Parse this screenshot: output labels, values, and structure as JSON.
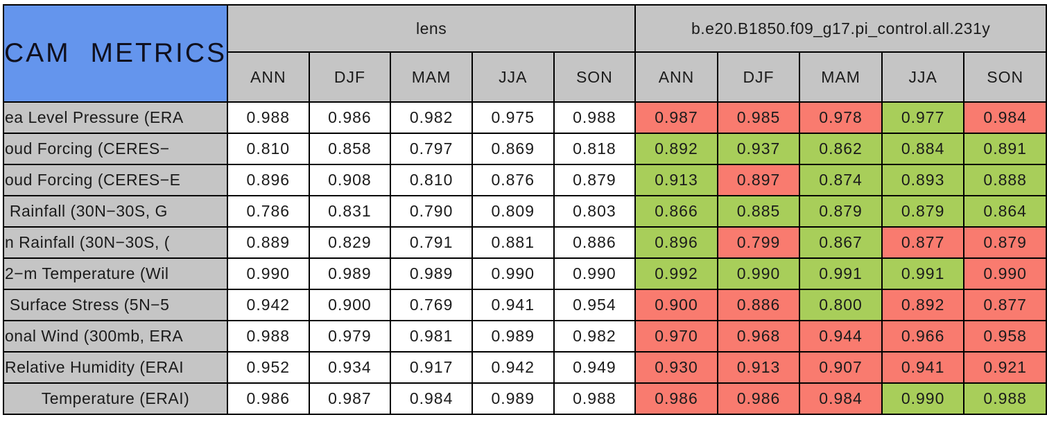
{
  "title": "CAM METRICS",
  "colors": {
    "header_blue": "#6495ED",
    "header_gray": "#C5C5C5",
    "cell_white": "#FFFFFF",
    "border_black": "#000000",
    "red": "#F97B6F",
    "green": "#A8CE5A"
  },
  "chart_data": {
    "type": "table",
    "title": "CAM METRICS",
    "column_groups": [
      "lens",
      "b.e20.B1850.f09_g17.pi_control.all.231y"
    ],
    "seasons": [
      "ANN",
      "DJF",
      "MAM",
      "JJA",
      "SON"
    ],
    "rows": [
      {
        "label": "ea Level Pressure (ERA",
        "label_clipped": true,
        "lens": [
          "0.988",
          "0.986",
          "0.982",
          "0.975",
          "0.988"
        ],
        "control": [
          "0.987",
          "0.985",
          "0.978",
          "0.977",
          "0.984"
        ],
        "control_colors": [
          "red",
          "red",
          "red",
          "green",
          "red"
        ]
      },
      {
        "label": "oud Forcing (CERES−",
        "label_clipped": true,
        "lens": [
          "0.810",
          "0.858",
          "0.797",
          "0.869",
          "0.818"
        ],
        "control": [
          "0.892",
          "0.937",
          "0.862",
          "0.884",
          "0.891"
        ],
        "control_colors": [
          "green",
          "green",
          "green",
          "green",
          "green"
        ]
      },
      {
        "label": "oud Forcing (CERES−E",
        "label_clipped": true,
        "lens": [
          "0.896",
          "0.908",
          "0.810",
          "0.876",
          "0.879"
        ],
        "control": [
          "0.913",
          "0.897",
          "0.874",
          "0.893",
          "0.888"
        ],
        "control_colors": [
          "green",
          "red",
          "green",
          "green",
          "green"
        ]
      },
      {
        "label": " Rainfall (30N−30S, G",
        "label_clipped": true,
        "lens": [
          "0.786",
          "0.831",
          "0.790",
          "0.809",
          "0.803"
        ],
        "control": [
          "0.866",
          "0.885",
          "0.879",
          "0.879",
          "0.864"
        ],
        "control_colors": [
          "green",
          "green",
          "green",
          "green",
          "green"
        ]
      },
      {
        "label": "n Rainfall (30N−30S, (",
        "label_clipped": true,
        "lens": [
          "0.889",
          "0.829",
          "0.791",
          "0.881",
          "0.886"
        ],
        "control": [
          "0.896",
          "0.799",
          "0.867",
          "0.877",
          "0.879"
        ],
        "control_colors": [
          "green",
          "red",
          "green",
          "red",
          "red"
        ]
      },
      {
        "label": "2−m Temperature (Wil",
        "label_clipped": true,
        "lens": [
          "0.990",
          "0.989",
          "0.989",
          "0.990",
          "0.990"
        ],
        "control": [
          "0.992",
          "0.990",
          "0.991",
          "0.991",
          "0.990"
        ],
        "control_colors": [
          "green",
          "green",
          "green",
          "green",
          "red"
        ]
      },
      {
        "label": " Surface Stress (5N−5",
        "label_clipped": true,
        "lens": [
          "0.942",
          "0.900",
          "0.769",
          "0.941",
          "0.954"
        ],
        "control": [
          "0.900",
          "0.886",
          "0.800",
          "0.892",
          "0.877"
        ],
        "control_colors": [
          "red",
          "red",
          "green",
          "red",
          "red"
        ]
      },
      {
        "label": "onal Wind (300mb, ERA",
        "label_clipped": true,
        "lens": [
          "0.988",
          "0.979",
          "0.981",
          "0.989",
          "0.982"
        ],
        "control": [
          "0.970",
          "0.968",
          "0.944",
          "0.966",
          "0.958"
        ],
        "control_colors": [
          "red",
          "red",
          "red",
          "red",
          "red"
        ]
      },
      {
        "label": "Relative Humidity (ERAI",
        "label_clipped": true,
        "lens": [
          "0.952",
          "0.934",
          "0.917",
          "0.942",
          "0.949"
        ],
        "control": [
          "0.930",
          "0.913",
          "0.907",
          "0.941",
          "0.921"
        ],
        "control_colors": [
          "red",
          "red",
          "red",
          "red",
          "red"
        ]
      },
      {
        "label": "Temperature (ERAI)",
        "label_clipped": false,
        "lens": [
          "0.986",
          "0.987",
          "0.984",
          "0.989",
          "0.988"
        ],
        "control": [
          "0.986",
          "0.986",
          "0.984",
          "0.990",
          "0.988"
        ],
        "control_colors": [
          "red",
          "red",
          "red",
          "green",
          "green"
        ]
      }
    ]
  }
}
